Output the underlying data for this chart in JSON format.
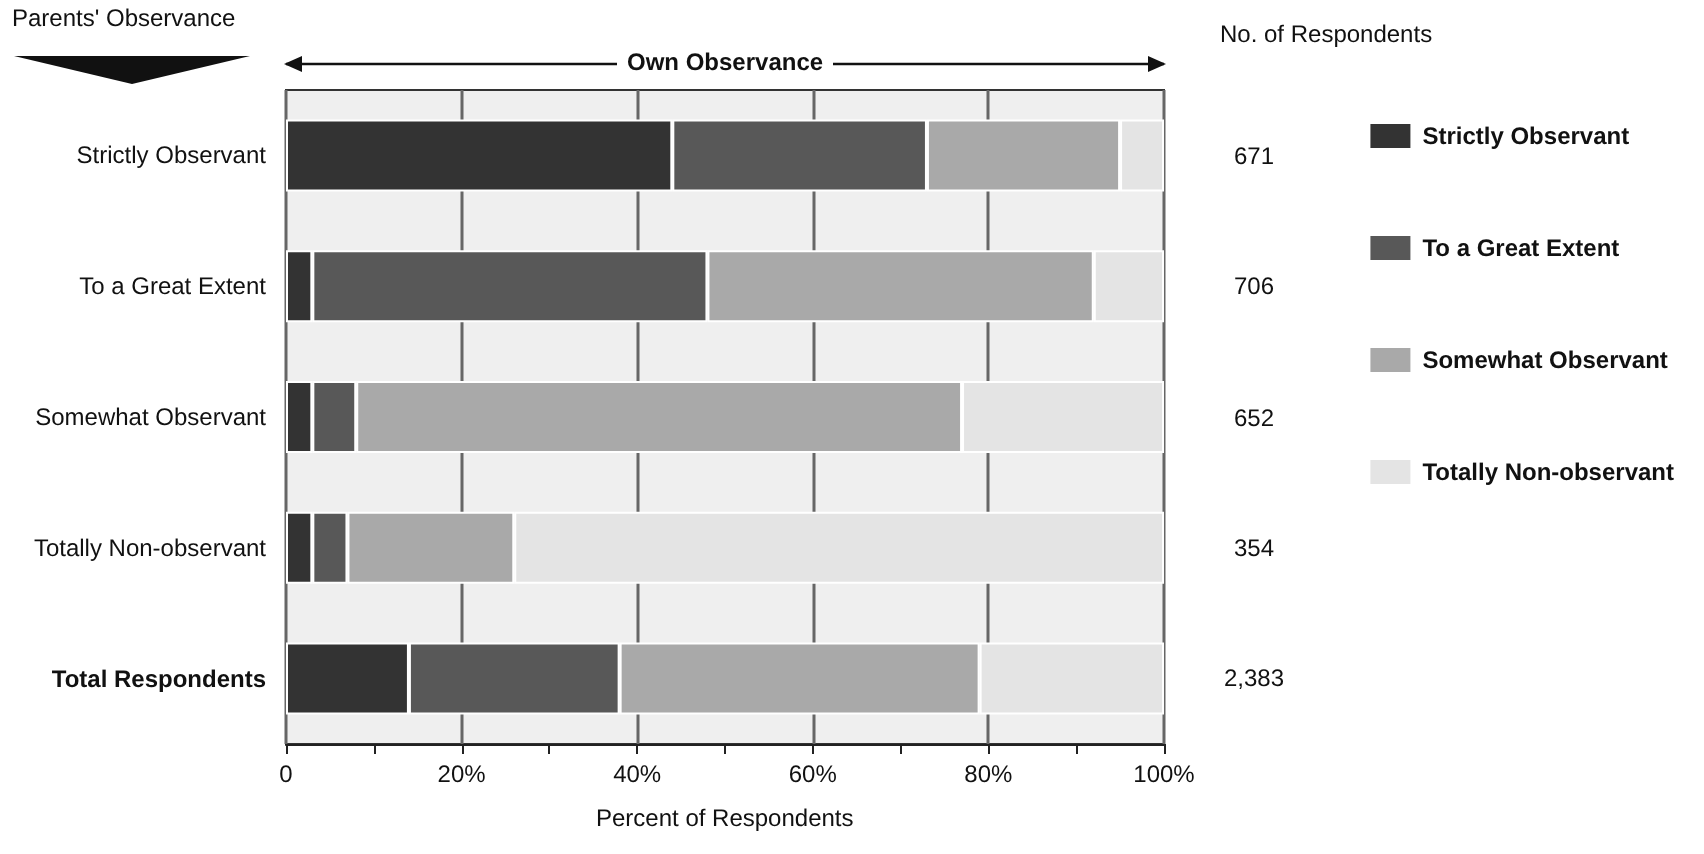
{
  "chart_data": {
    "type": "bar",
    "orientation": "horizontal",
    "stacked": true,
    "categories": [
      "Strictly Observant",
      "To a Great Extent",
      "Somewhat Observant",
      "Totally Non-observant",
      "Total Respondents"
    ],
    "series": [
      {
        "name": "Strictly Observant",
        "color": "#333333",
        "values": [
          44,
          3,
          3,
          3,
          14
        ]
      },
      {
        "name": "To a Great Extent",
        "color": "#585858",
        "values": [
          29,
          45,
          5,
          4,
          24
        ]
      },
      {
        "name": "Somewhat Observant",
        "color": "#a9a9a9",
        "values": [
          22,
          44,
          69,
          19,
          41
        ]
      },
      {
        "name": "Totally Non-observant",
        "color": "#e4e4e4",
        "values": [
          5,
          8,
          23,
          74,
          21
        ]
      }
    ],
    "xlim": [
      0,
      100
    ],
    "xticks": [
      {
        "value": 0,
        "label": "0"
      },
      {
        "value": 10,
        "label": null
      },
      {
        "value": 20,
        "label": "20%"
      },
      {
        "value": 30,
        "label": null
      },
      {
        "value": 40,
        "label": "40%"
      },
      {
        "value": 50,
        "label": null
      },
      {
        "value": 60,
        "label": "60%"
      },
      {
        "value": 70,
        "label": null
      },
      {
        "value": 80,
        "label": "80%"
      },
      {
        "value": 90,
        "label": null
      },
      {
        "value": 100,
        "label": "100%"
      }
    ],
    "xlabel": "Percent of Respondents",
    "ylabel": "Parents' Observance",
    "y2label": "No. of Respondents",
    "annotations": [
      "Own Observance",
      "671",
      "706",
      "652",
      "354",
      "2,383"
    ],
    "grid": "x",
    "legend": "right"
  }
}
